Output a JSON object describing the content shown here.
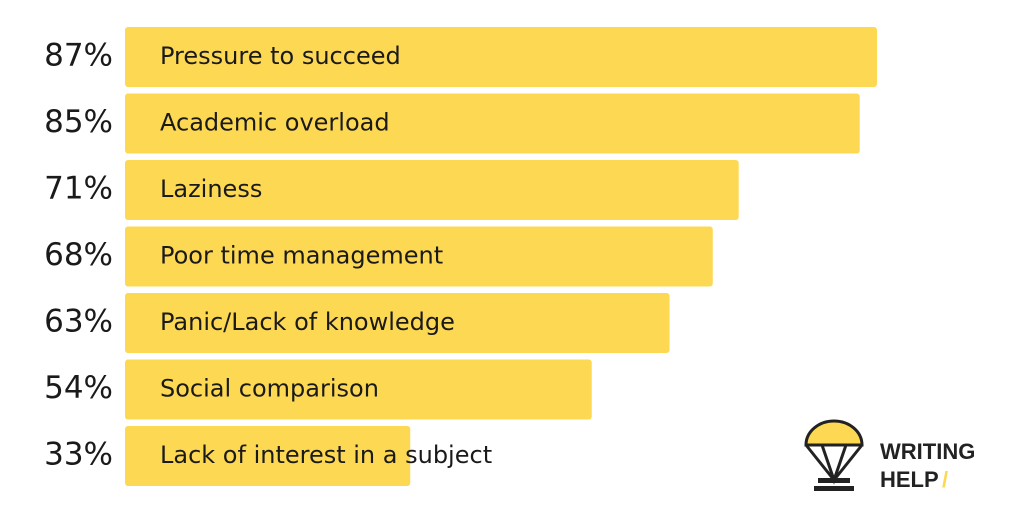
{
  "chart_data": {
    "type": "bar",
    "orientation": "horizontal",
    "categories": [
      "Pressure to succeed",
      "Academic overload",
      "Laziness",
      "Poor time management",
      "Panic/Lack of knowledge",
      "Social comparison",
      "Lack of interest in a subject"
    ],
    "values": [
      87,
      85,
      71,
      68,
      63,
      54,
      33
    ],
    "value_labels": [
      "87%",
      "85%",
      "71%",
      "68%",
      "63%",
      "54%",
      "33%"
    ],
    "color": "#fdd853"
  },
  "logo": {
    "line1": "WRITING",
    "line2": "HELP",
    "mark": "/"
  }
}
